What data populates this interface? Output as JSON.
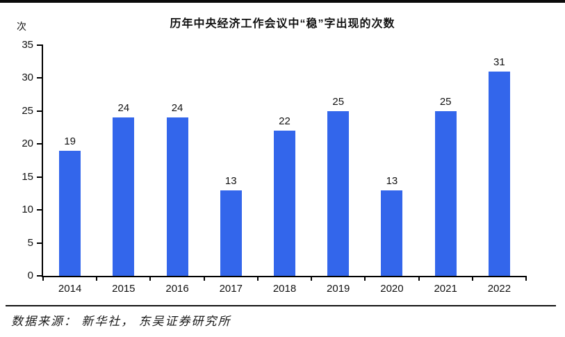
{
  "page": {
    "background": "#ffffff",
    "accent_blue": "#3366EB",
    "line_color": "#0a0a0a"
  },
  "header": {
    "unit_label": "次",
    "title": "历年中央经济工作会议中“稳”字出现的次数"
  },
  "chart_data": {
    "type": "bar",
    "title": "历年中央经济工作会议中“稳”字出现的次数",
    "xlabel": "",
    "ylabel": "次",
    "categories": [
      "2014",
      "2015",
      "2016",
      "2017",
      "2018",
      "2019",
      "2020",
      "2021",
      "2022"
    ],
    "values": [
      19,
      24,
      24,
      13,
      22,
      25,
      13,
      25,
      31
    ],
    "ylim": [
      0,
      35
    ],
    "yticks": [
      0,
      5,
      10,
      15,
      20,
      25,
      30,
      35
    ],
    "bar_color": "#3366EB",
    "grid": false,
    "legend_position": "none",
    "data_labels": true
  },
  "footer": {
    "source": "数据来源： 新华社， 东吴证券研究所"
  }
}
